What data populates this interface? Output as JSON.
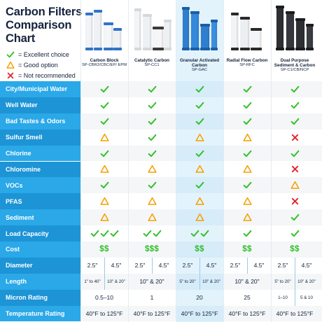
{
  "title": {
    "line1": "Carbon Filters",
    "line2": "Comparison",
    "line3": "Chart"
  },
  "legend": [
    {
      "symbol": "check",
      "label": "= Excellent choice"
    },
    {
      "symbol": "warning",
      "label": "= Good option"
    },
    {
      "symbol": "cross",
      "label": "= Not recommended"
    }
  ],
  "colors": {
    "check": "#2ec026",
    "warning": "#f5a000",
    "cross": "#e0282c",
    "label_band": "#2aa8e8",
    "label_band_alt": "#1c94d6",
    "highlight_column": "#e3f3fc",
    "row_odd": "#f4f6f8",
    "row_even": "#ffffff"
  },
  "products": [
    {
      "name": "Carbon Block",
      "sku": "SP-CBR2/CBC/EP/ EPM",
      "image": "white-blue-cap-filters"
    },
    {
      "name": "Catalytic Carbon",
      "sku": "SP-CC1",
      "image": "white-filters"
    },
    {
      "name": "Granular Activated Carbon",
      "sku": "SP-GAC",
      "image": "blue-filters"
    },
    {
      "name": "Radial Flow Carbon",
      "sku": "SP-RFC",
      "image": "white-black-cap-filters"
    },
    {
      "name": "Dual Purpose Sediment & Carbon",
      "sku": "SP-C1/CB/NCP",
      "image": "black-filters"
    }
  ],
  "rows": [
    {
      "label": "City/Municipal Water",
      "type": "icons",
      "values": [
        "check",
        "check",
        "check",
        "check",
        "check"
      ]
    },
    {
      "label": "Well Water",
      "type": "icons",
      "values": [
        "check",
        "check",
        "check",
        "check",
        "check"
      ]
    },
    {
      "label": "Bad Tastes & Odors",
      "type": "icons",
      "values": [
        "check",
        "check",
        "check",
        "check",
        "check"
      ]
    },
    {
      "label": "Sulfur Smell",
      "type": "icons",
      "values": [
        "warning",
        "check",
        "warning",
        "warning",
        "cross"
      ]
    },
    {
      "label": "Chlorine",
      "type": "icons",
      "values": [
        "check",
        "check",
        "check",
        "check",
        "check"
      ]
    },
    {
      "label": "Chloromine",
      "type": "icons",
      "values": [
        "warning",
        "warning",
        "warning",
        "warning",
        "cross"
      ]
    },
    {
      "label": "VOCs",
      "type": "icons",
      "values": [
        "check",
        "check",
        "check",
        "check",
        "warning"
      ]
    },
    {
      "label": "PFAS",
      "type": "icons",
      "values": [
        "warning",
        "warning",
        "warning",
        "warning",
        "cross"
      ]
    },
    {
      "label": "Sediment",
      "type": "icons",
      "values": [
        "warning",
        "warning",
        "warning",
        "warning",
        "check"
      ]
    },
    {
      "label": "Load Capacity",
      "type": "checkcount",
      "values": [
        3,
        2,
        2,
        1,
        1
      ]
    },
    {
      "label": "Cost",
      "type": "dollars",
      "values": [
        "$$",
        "$$$",
        "$$",
        "$$",
        "$$"
      ]
    },
    {
      "label": "Diameter",
      "type": "split",
      "values": [
        [
          "2.5\"",
          "4.5\""
        ],
        [
          "2.5\"",
          "4.5\""
        ],
        [
          "2.5\"",
          "4.5\""
        ],
        [
          "2.5\"",
          "4.5\""
        ],
        [
          "2.5\"",
          "4.5\""
        ]
      ]
    },
    {
      "label": "Length",
      "type": "mixed",
      "values": [
        [
          "1\" to 40\"",
          "10\" & 20\""
        ],
        "10\" & 20\"",
        [
          "5\" to 20\"",
          "10\" & 20\""
        ],
        "10\" & 20\"",
        [
          "5\" to 20\"",
          "10\" & 20\""
        ]
      ]
    },
    {
      "label": "Micron Rating",
      "type": "mixed",
      "values": [
        "0.5–10",
        "1",
        "20",
        "25",
        [
          "1–10",
          "5 & 10"
        ]
      ]
    },
    {
      "label": "Temperature Rating",
      "type": "mixed",
      "values": [
        "40°F to 125°F",
        "40°F to 125°F",
        "40°F to 125°F",
        "40°F to 125°F",
        "40°F to 125°F"
      ]
    }
  ]
}
